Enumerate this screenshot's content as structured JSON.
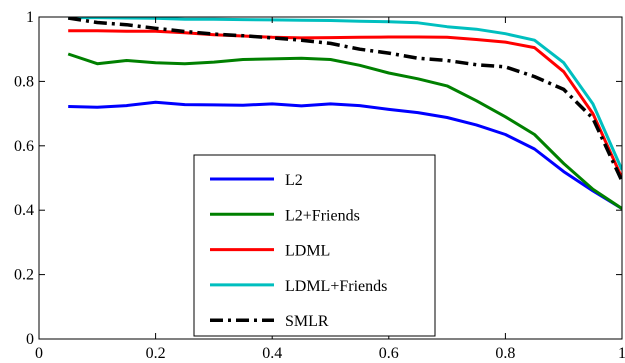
{
  "chart_data": {
    "type": "line",
    "title": "",
    "xlabel": "",
    "ylabel": "",
    "xlim": [
      0,
      1
    ],
    "ylim": [
      0,
      1
    ],
    "xticks": [
      0,
      0.2,
      0.4,
      0.6,
      0.8,
      1
    ],
    "yticks": [
      0,
      0.2,
      0.4,
      0.6,
      0.8,
      1
    ],
    "xtick_labels": [
      "0",
      "0.2",
      "0.4",
      "0.6",
      "0.8",
      "1"
    ],
    "ytick_labels": [
      "0",
      "0.2",
      "0.4",
      "0.6",
      "0.8",
      "1"
    ],
    "grid": false,
    "legend_position": "center-left (lower half)",
    "series": [
      {
        "name": "L2",
        "color": "#0000ff",
        "dash": "solid",
        "x": [
          0.05,
          0.1,
          0.15,
          0.2,
          0.25,
          0.3,
          0.35,
          0.4,
          0.45,
          0.5,
          0.55,
          0.6,
          0.65,
          0.7,
          0.75,
          0.8,
          0.85,
          0.9,
          0.95,
          1.0
        ],
        "y": [
          0.722,
          0.72,
          0.725,
          0.735,
          0.728,
          0.727,
          0.726,
          0.73,
          0.724,
          0.73,
          0.725,
          0.713,
          0.703,
          0.688,
          0.665,
          0.635,
          0.59,
          0.52,
          0.46,
          0.405
        ]
      },
      {
        "name": "L2+Friends",
        "color": "#008000",
        "dash": "solid",
        "x": [
          0.05,
          0.1,
          0.15,
          0.2,
          0.25,
          0.3,
          0.35,
          0.4,
          0.45,
          0.5,
          0.55,
          0.6,
          0.65,
          0.7,
          0.75,
          0.8,
          0.85,
          0.9,
          0.95,
          1.0
        ],
        "y": [
          0.885,
          0.855,
          0.865,
          0.858,
          0.855,
          0.86,
          0.868,
          0.87,
          0.872,
          0.868,
          0.85,
          0.826,
          0.808,
          0.786,
          0.74,
          0.69,
          0.635,
          0.545,
          0.465,
          0.405
        ]
      },
      {
        "name": "LDML",
        "color": "#ff0000",
        "dash": "solid",
        "x": [
          0.05,
          0.1,
          0.15,
          0.2,
          0.25,
          0.3,
          0.35,
          0.4,
          0.45,
          0.5,
          0.55,
          0.6,
          0.65,
          0.7,
          0.75,
          0.8,
          0.85,
          0.9,
          0.95,
          1.0
        ],
        "y": [
          0.957,
          0.957,
          0.956,
          0.956,
          0.951,
          0.945,
          0.941,
          0.937,
          0.935,
          0.936,
          0.937,
          0.938,
          0.938,
          0.937,
          0.93,
          0.922,
          0.905,
          0.83,
          0.7,
          0.5
        ]
      },
      {
        "name": "LDML+Friends",
        "color": "#00bfbf",
        "dash": "solid",
        "x": [
          0.05,
          0.1,
          0.15,
          0.2,
          0.25,
          0.3,
          0.35,
          0.4,
          0.45,
          0.5,
          0.55,
          0.6,
          0.65,
          0.7,
          0.75,
          0.8,
          0.85,
          0.9,
          0.95,
          1.0
        ],
        "y": [
          0.998,
          0.998,
          0.997,
          0.996,
          0.993,
          0.993,
          0.992,
          0.991,
          0.99,
          0.989,
          0.987,
          0.985,
          0.982,
          0.97,
          0.962,
          0.948,
          0.928,
          0.858,
          0.73,
          0.525
        ]
      },
      {
        "name": "SMLR",
        "color": "#000000",
        "dash": "dashdot",
        "x": [
          0.05,
          0.1,
          0.15,
          0.2,
          0.25,
          0.3,
          0.35,
          0.4,
          0.45,
          0.5,
          0.55,
          0.6,
          0.65,
          0.7,
          0.75,
          0.8,
          0.85,
          0.9,
          0.95,
          1.0
        ],
        "y": [
          0.997,
          0.983,
          0.976,
          0.965,
          0.955,
          0.947,
          0.942,
          0.935,
          0.928,
          0.918,
          0.9,
          0.888,
          0.872,
          0.865,
          0.852,
          0.845,
          0.815,
          0.775,
          0.685,
          0.49
        ]
      }
    ]
  }
}
